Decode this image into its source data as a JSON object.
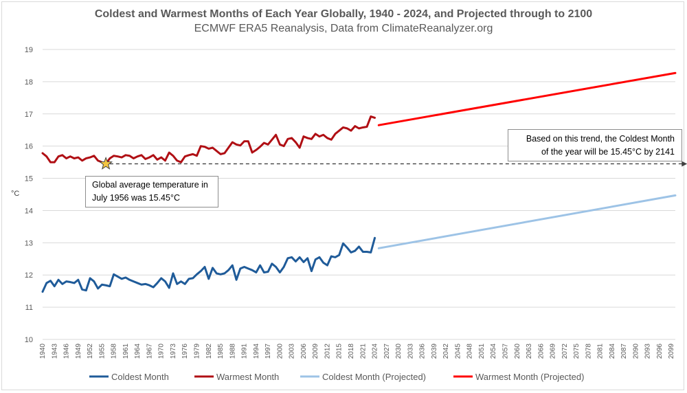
{
  "chart_data": {
    "type": "line",
    "title": "Coldest and Warmest Months of Each Year Globally, 1940 - 2024, and Projected through to 2100",
    "subtitle": "ECMWF ERA5 Reanalysis, Data from ClimateReanalyzer.org",
    "ylabel": "°C",
    "xlabel": "",
    "ylim": [
      10,
      19
    ],
    "yticks": [
      10,
      11,
      12,
      13,
      14,
      15,
      16,
      17,
      18,
      19
    ],
    "x_start": 1940,
    "x_end": 2100,
    "xtick_labels": [
      "1940",
      "1943",
      "1946",
      "1949",
      "1952",
      "1955",
      "1958",
      "1961",
      "1964",
      "1967",
      "1970",
      "1973",
      "1976",
      "1979",
      "1982",
      "1985",
      "1988",
      "1991",
      "1994",
      "1997",
      "2000",
      "2003",
      "2006",
      "2009",
      "2012",
      "2015",
      "2018",
      "2021",
      "2024",
      "2027",
      "2030",
      "2033",
      "2036",
      "2039",
      "2042",
      "2045",
      "2048",
      "2051",
      "2054",
      "2057",
      "2060",
      "2063",
      "2066",
      "2069",
      "2072",
      "2075",
      "2078",
      "2081",
      "2084",
      "2087",
      "2090",
      "2093",
      "2096",
      "2099"
    ],
    "grid": "horizontal",
    "legend_position": "bottom",
    "series": [
      {
        "name": "Coldest Month",
        "color": "#1f5b99",
        "x_start": 1940,
        "values": [
          11.48,
          11.75,
          11.82,
          11.65,
          11.85,
          11.72,
          11.8,
          11.78,
          11.75,
          11.85,
          11.55,
          11.52,
          11.9,
          11.8,
          11.58,
          11.7,
          11.68,
          11.65,
          12.02,
          11.95,
          11.88,
          11.92,
          11.85,
          11.8,
          11.75,
          11.7,
          11.72,
          11.68,
          11.62,
          11.75,
          11.9,
          11.8,
          11.6,
          12.05,
          11.72,
          11.8,
          11.72,
          11.88,
          11.9,
          12.02,
          12.12,
          12.25,
          11.88,
          12.22,
          12.05,
          12.02,
          12.05,
          12.15,
          12.3,
          11.85,
          12.2,
          12.25,
          12.2,
          12.15,
          12.08,
          12.3,
          12.08,
          12.1,
          12.35,
          12.25,
          12.08,
          12.25,
          12.52,
          12.55,
          12.42,
          12.55,
          12.4,
          12.52,
          12.12,
          12.48,
          12.55,
          12.38,
          12.3,
          12.58,
          12.55,
          12.62,
          12.98,
          12.85,
          12.7,
          12.75,
          12.88,
          12.72,
          12.72,
          12.7,
          13.15
        ]
      },
      {
        "name": "Warmest Month",
        "color": "#b00f14",
        "x_start": 1940,
        "values": [
          15.78,
          15.68,
          15.5,
          15.5,
          15.68,
          15.72,
          15.62,
          15.68,
          15.62,
          15.65,
          15.55,
          15.62,
          15.65,
          15.7,
          15.55,
          15.5,
          15.45,
          15.62,
          15.7,
          15.68,
          15.65,
          15.72,
          15.7,
          15.62,
          15.68,
          15.72,
          15.6,
          15.65,
          15.72,
          15.58,
          15.65,
          15.55,
          15.8,
          15.7,
          15.55,
          15.5,
          15.68,
          15.72,
          15.75,
          15.7,
          16.0,
          15.98,
          15.92,
          15.95,
          15.85,
          15.75,
          15.78,
          15.95,
          16.12,
          16.05,
          16.02,
          16.15,
          16.15,
          15.8,
          15.88,
          15.98,
          16.1,
          16.05,
          16.2,
          16.35,
          16.05,
          16.0,
          16.22,
          16.25,
          16.12,
          15.95,
          16.3,
          16.25,
          16.22,
          16.38,
          16.3,
          16.35,
          16.25,
          16.2,
          16.38,
          16.48,
          16.58,
          16.55,
          16.48,
          16.62,
          16.55,
          16.58,
          16.6,
          16.92,
          16.88
        ]
      },
      {
        "name": "Coldest Month (Projected)",
        "color": "#9dc3e6",
        "x": [
          2025,
          2100
        ],
        "values": [
          12.83,
          14.47
        ]
      },
      {
        "name": "Warmest Month (Projected)",
        "color": "#ff0000",
        "x": [
          2025,
          2100
        ],
        "values": [
          16.65,
          18.27
        ]
      }
    ],
    "annotations": {
      "star": {
        "year": 1956,
        "value": 15.45,
        "color": "#f4c542"
      },
      "dashed_line": {
        "from_year": 1957,
        "to_year": 2103,
        "value": 15.45,
        "color": "#404040"
      },
      "callout_left": {
        "line1": "Global average temperature in",
        "line2": "July 1956 was 15.45°C"
      },
      "callout_right": {
        "line1": "Based on this trend, the Coldest Month",
        "line2": "of the year will be 15.45°C by 2141"
      }
    }
  }
}
